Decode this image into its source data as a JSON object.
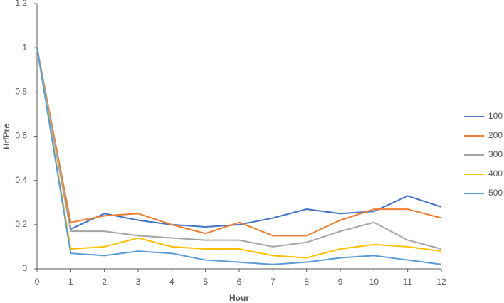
{
  "chart_data": {
    "type": "line",
    "x_label": "Hour",
    "y_label": "Hr/Pre",
    "x": [
      0,
      1,
      2,
      3,
      4,
      5,
      6,
      7,
      8,
      9,
      10,
      11,
      12
    ],
    "xlim": [
      0,
      12
    ],
    "xticks": [
      0,
      1,
      2,
      3,
      4,
      5,
      6,
      7,
      8,
      9,
      10,
      11,
      12
    ],
    "ylim": [
      0,
      1.2
    ],
    "yticks": [
      0,
      0.2,
      0.4,
      0.6,
      0.8,
      1,
      1.2
    ],
    "grid": false,
    "legend": "right",
    "series": [
      {
        "name": "100",
        "color": "#4472c4",
        "values": [
          1,
          0.18,
          0.25,
          0.22,
          0.2,
          0.19,
          0.2,
          0.23,
          0.27,
          0.25,
          0.26,
          0.33,
          0.28
        ]
      },
      {
        "name": "200",
        "color": "#ed7d31",
        "values": [
          1,
          0.21,
          0.24,
          0.25,
          0.2,
          0.16,
          0.21,
          0.15,
          0.15,
          0.22,
          0.27,
          0.27,
          0.23
        ]
      },
      {
        "name": "300",
        "color": "#a5a5a5",
        "values": [
          1,
          0.17,
          0.17,
          0.15,
          0.14,
          0.13,
          0.13,
          0.1,
          0.12,
          0.17,
          0.21,
          0.13,
          0.09
        ]
      },
      {
        "name": "400",
        "color": "#ffc000",
        "values": [
          1,
          0.09,
          0.1,
          0.14,
          0.1,
          0.09,
          0.09,
          0.06,
          0.05,
          0.09,
          0.11,
          0.1,
          0.08
        ]
      },
      {
        "name": "500",
        "color": "#5b9bd5",
        "values": [
          1,
          0.07,
          0.06,
          0.08,
          0.07,
          0.04,
          0.03,
          0.02,
          0.03,
          0.05,
          0.06,
          0.04,
          0.02
        ]
      }
    ]
  }
}
